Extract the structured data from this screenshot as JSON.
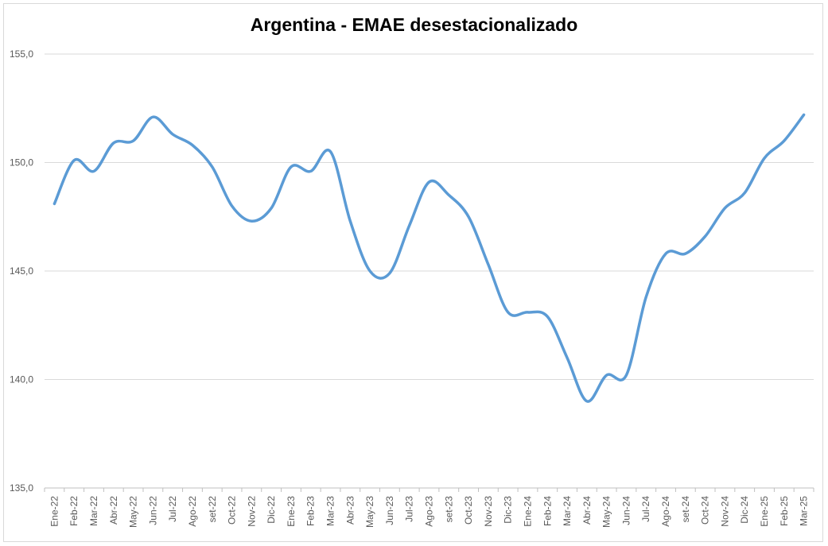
{
  "chart_data": {
    "type": "line",
    "title": "Argentina - EMAE desestacionalizado",
    "xlabel": "",
    "ylabel": "",
    "ylim": [
      135,
      155
    ],
    "yticks": [
      "135,0",
      "140,0",
      "145,0",
      "150,0",
      "155,0"
    ],
    "ytick_values": [
      135,
      140,
      145,
      150,
      155
    ],
    "grid": true,
    "legend": "none",
    "line_color": "#5b9bd5",
    "categories": [
      "Ene-22",
      "Feb-22",
      "Mar-22",
      "Abr-22",
      "May-22",
      "Jun-22",
      "Jul-22",
      "Ago-22",
      "set-22",
      "Oct-22",
      "Nov-22",
      "Dic-22",
      "Ene-23",
      "Feb-23",
      "Mar-23",
      "Abr-23",
      "May-23",
      "Jun-23",
      "Jul-23",
      "Ago-23",
      "set-23",
      "Oct-23",
      "Nov-23",
      "Dic-23",
      "Ene-24",
      "Feb-24",
      "Mar-24",
      "Abr-24",
      "May-24",
      "Jun-24",
      "Jul-24",
      "Ago-24",
      "set-24",
      "Oct-24",
      "Nov-24",
      "Dic-24",
      "Ene-25",
      "Feb-25",
      "Mar-25"
    ],
    "series": [
      {
        "values": [
          148.1,
          150.1,
          149.6,
          150.9,
          151.0,
          152.1,
          151.3,
          150.8,
          149.8,
          148.0,
          147.3,
          147.9,
          149.8,
          149.6,
          150.5,
          147.3,
          145.0,
          144.9,
          147.1,
          149.1,
          148.5,
          147.5,
          145.3,
          143.1,
          143.1,
          142.9,
          141.0,
          139.0,
          140.2,
          140.2,
          143.8,
          145.8,
          145.8,
          146.6,
          147.9,
          148.6,
          150.2,
          151.0,
          152.2
        ]
      }
    ]
  }
}
